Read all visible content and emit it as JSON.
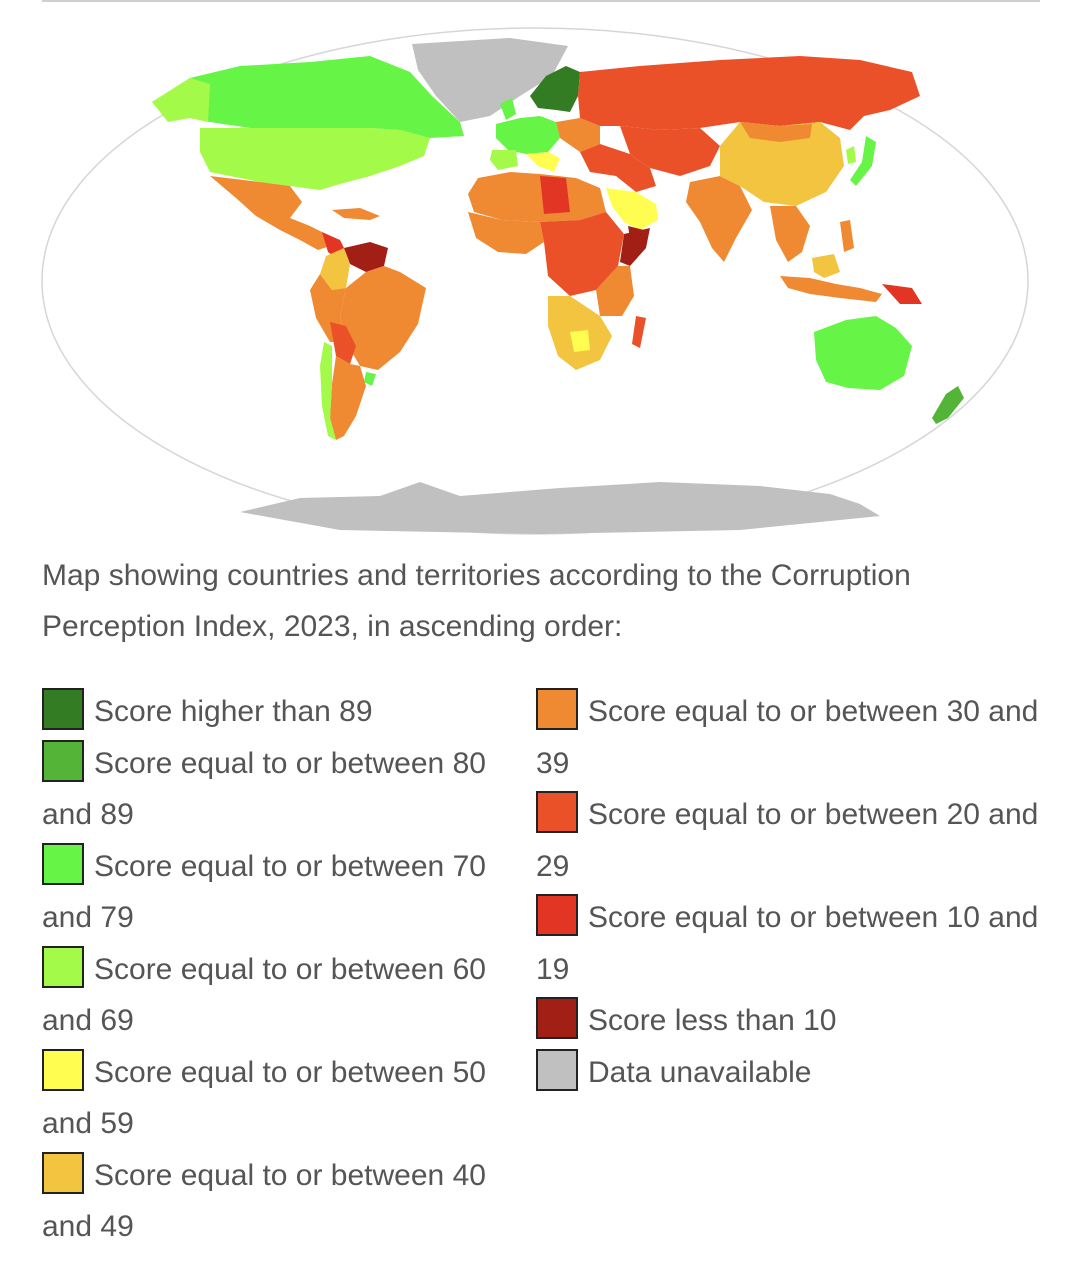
{
  "caption": "Map showing countries and territories according to the Corruption Perception Index, 2023, in ascending order:",
  "colors": {
    "ocean": "#ffffff",
    "map_border": "#d6d6d6",
    "unavailable": "#c0c0c0"
  },
  "legend": {
    "left": [
      {
        "label": "Score higher than 89",
        "color": "#347c23"
      },
      {
        "label": "Score equal to or between 80 and 89",
        "color": "#54b437"
      },
      {
        "label": "Score equal to or between 70 and 79",
        "color": "#66f446"
      },
      {
        "label": "Score equal to or between 60 and 69",
        "color": "#a4fa48"
      },
      {
        "label": "Score equal to or between 50 and 59",
        "color": "#fffe50"
      },
      {
        "label": "Score equal to or between 40 and 49",
        "color": "#f3c43f"
      }
    ],
    "right": [
      {
        "label": "Score equal to or between 30 and 39",
        "color": "#ef8a32"
      },
      {
        "label": "Score equal to or between 20 and 29",
        "color": "#ea5128"
      },
      {
        "label": "Score equal to or between 10 and 19",
        "color": "#e33523"
      },
      {
        "label": "Score less than 10",
        "color": "#a11f15"
      },
      {
        "label": "Data unavailable",
        "color": "#c0c0c0"
      }
    ]
  }
}
